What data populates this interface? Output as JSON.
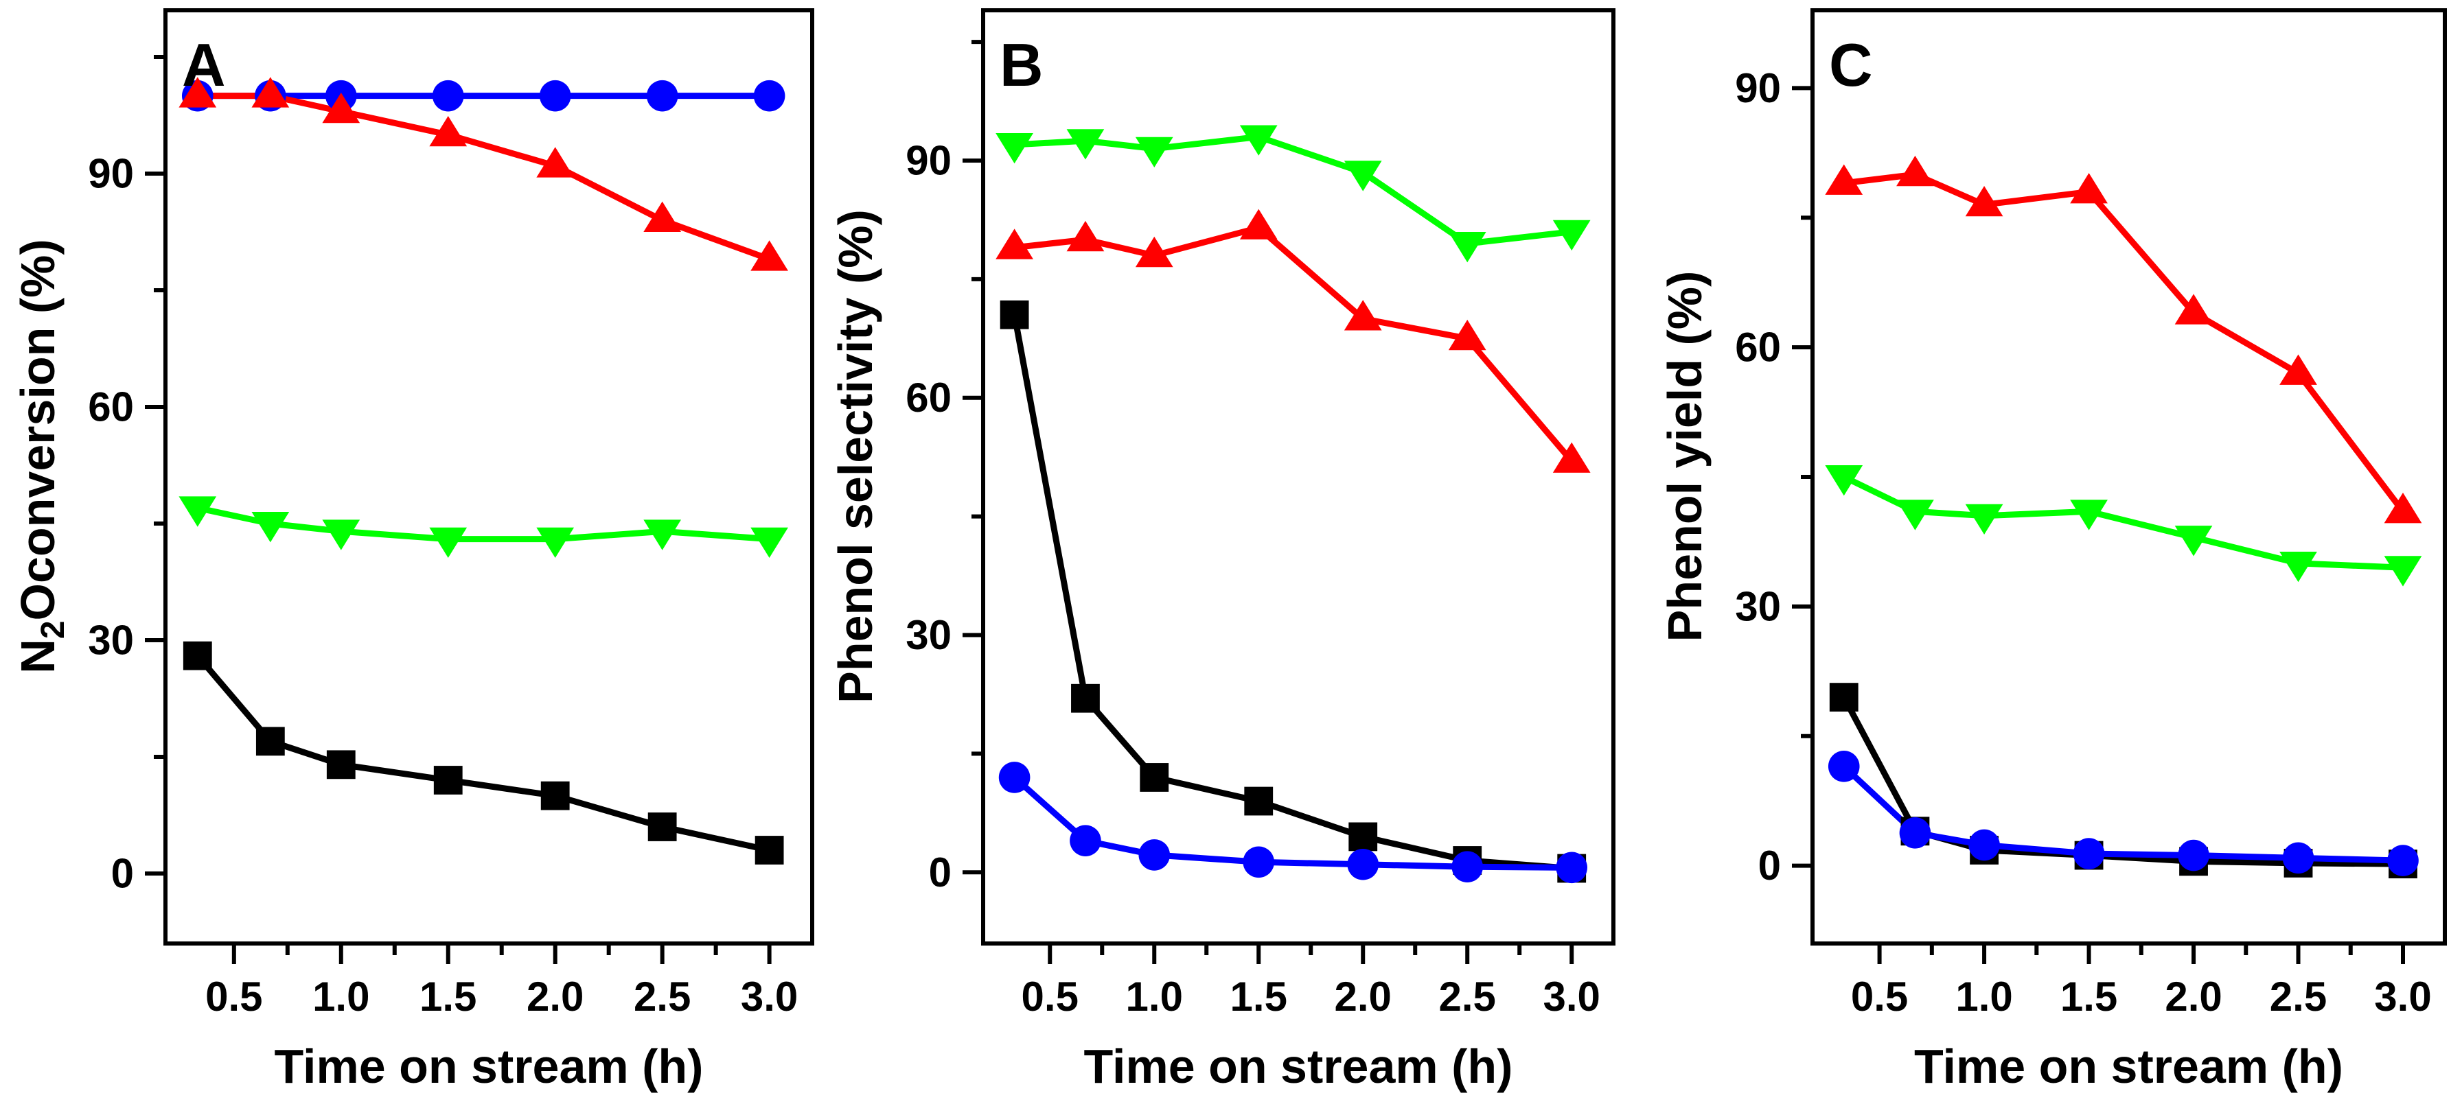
{
  "chart_data": [
    {
      "type": "line",
      "panel_label": "A",
      "title": "",
      "xlabel": "Time on stream (h)",
      "ylabel_prefix": "N",
      "ylabel_sub": "2",
      "ylabel_suffix": "Oconversion (%)",
      "xlim": [
        0.18,
        3.2
      ],
      "ylim": [
        -9,
        111
      ],
      "xticks": [
        0.5,
        1.0,
        1.5,
        2.0,
        2.5,
        3.0
      ],
      "xtick_labels": [
        "0.5",
        "1.0",
        "1.5",
        "2.0",
        "2.5",
        "3.0"
      ],
      "yticks": [
        0,
        30,
        60,
        90
      ],
      "ytick_labels": [
        "0",
        "30",
        "60",
        "90"
      ],
      "yminor": [
        15,
        45,
        75,
        105
      ],
      "x": [
        0.33,
        0.67,
        1.0,
        1.5,
        2.0,
        2.5,
        3.0
      ],
      "series": [
        {
          "name": "blue-circle",
          "color": "#0000ff",
          "marker": "circle",
          "values": [
            100,
            100,
            100,
            100,
            100,
            100,
            100
          ]
        },
        {
          "name": "red-triangle-up",
          "color": "#ff0000",
          "marker": "triangle-up",
          "values": [
            100,
            100,
            98,
            95,
            91,
            84,
            79
          ]
        },
        {
          "name": "green-triangle-down",
          "color": "#00ff00",
          "marker": "triangle-down",
          "values": [
            47,
            45,
            44,
            43,
            43,
            44,
            43
          ]
        },
        {
          "name": "black-square",
          "color": "#000000",
          "marker": "square",
          "values": [
            28,
            17,
            14,
            12,
            10,
            6,
            3
          ]
        }
      ]
    },
    {
      "type": "line",
      "panel_label": "B",
      "title": "",
      "xlabel": "Time on stream (h)",
      "ylabel": "Phenol selectivity (%)",
      "xlim": [
        0.18,
        3.2
      ],
      "ylim": [
        -9,
        109
      ],
      "xticks": [
        0.5,
        1.0,
        1.5,
        2.0,
        2.5,
        3.0
      ],
      "xtick_labels": [
        "0.5",
        "1.0",
        "1.5",
        "2.0",
        "2.5",
        "3.0"
      ],
      "yticks": [
        0,
        30,
        60,
        90
      ],
      "ytick_labels": [
        "0",
        "30",
        "60",
        "90"
      ],
      "yminor": [
        15,
        45,
        75,
        105
      ],
      "x": [
        0.33,
        0.67,
        1.0,
        1.5,
        2.0,
        2.5,
        3.0
      ],
      "series": [
        {
          "name": "green-triangle-down",
          "color": "#00ff00",
          "marker": "triangle-down",
          "values": [
            92,
            92.5,
            91.5,
            93,
            88.5,
            79.5,
            81
          ]
        },
        {
          "name": "red-triangle-up",
          "color": "#ff0000",
          "marker": "triangle-up",
          "values": [
            79,
            80,
            78,
            81.5,
            70,
            67.5,
            52
          ]
        },
        {
          "name": "black-square",
          "color": "#000000",
          "marker": "square",
          "values": [
            70.5,
            22,
            12,
            9,
            4.5,
            1.5,
            0.5
          ]
        },
        {
          "name": "blue-circle",
          "color": "#0000ff",
          "marker": "circle",
          "values": [
            12,
            4,
            2.2,
            1.3,
            1,
            0.7,
            0.6
          ]
        }
      ]
    },
    {
      "type": "line",
      "panel_label": "C",
      "title": "",
      "xlabel": "Time on stream (h)",
      "ylabel": "Phenol yield (%)",
      "xlim": [
        0.18,
        3.2
      ],
      "ylim": [
        -9,
        99
      ],
      "xticks": [
        0.5,
        1.0,
        1.5,
        2.0,
        2.5,
        3.0
      ],
      "xtick_labels": [
        "0.5",
        "1.0",
        "1.5",
        "2.0",
        "2.5",
        "3.0"
      ],
      "yticks": [
        0,
        30,
        60,
        90
      ],
      "ytick_labels": [
        "0",
        "30",
        "60",
        "90"
      ],
      "yminor": [
        15,
        45,
        75
      ],
      "x": [
        0.33,
        0.67,
        1.0,
        1.5,
        2.0,
        2.5,
        3.0
      ],
      "series": [
        {
          "name": "red-triangle-up",
          "color": "#ff0000",
          "marker": "triangle-up",
          "values": [
            79,
            80,
            76.5,
            78,
            64,
            57,
            41
          ]
        },
        {
          "name": "green-triangle-down",
          "color": "#00ff00",
          "marker": "triangle-down",
          "values": [
            45,
            41,
            40.5,
            41,
            38,
            35,
            34.5
          ]
        },
        {
          "name": "black-square",
          "color": "#000000",
          "marker": "square",
          "values": [
            19.5,
            4,
            1.8,
            1.2,
            0.5,
            0.3,
            0.2
          ]
        },
        {
          "name": "blue-circle",
          "color": "#0000ff",
          "marker": "circle",
          "values": [
            11.5,
            3.8,
            2.4,
            1.4,
            1.2,
            0.9,
            0.6
          ]
        }
      ]
    }
  ]
}
